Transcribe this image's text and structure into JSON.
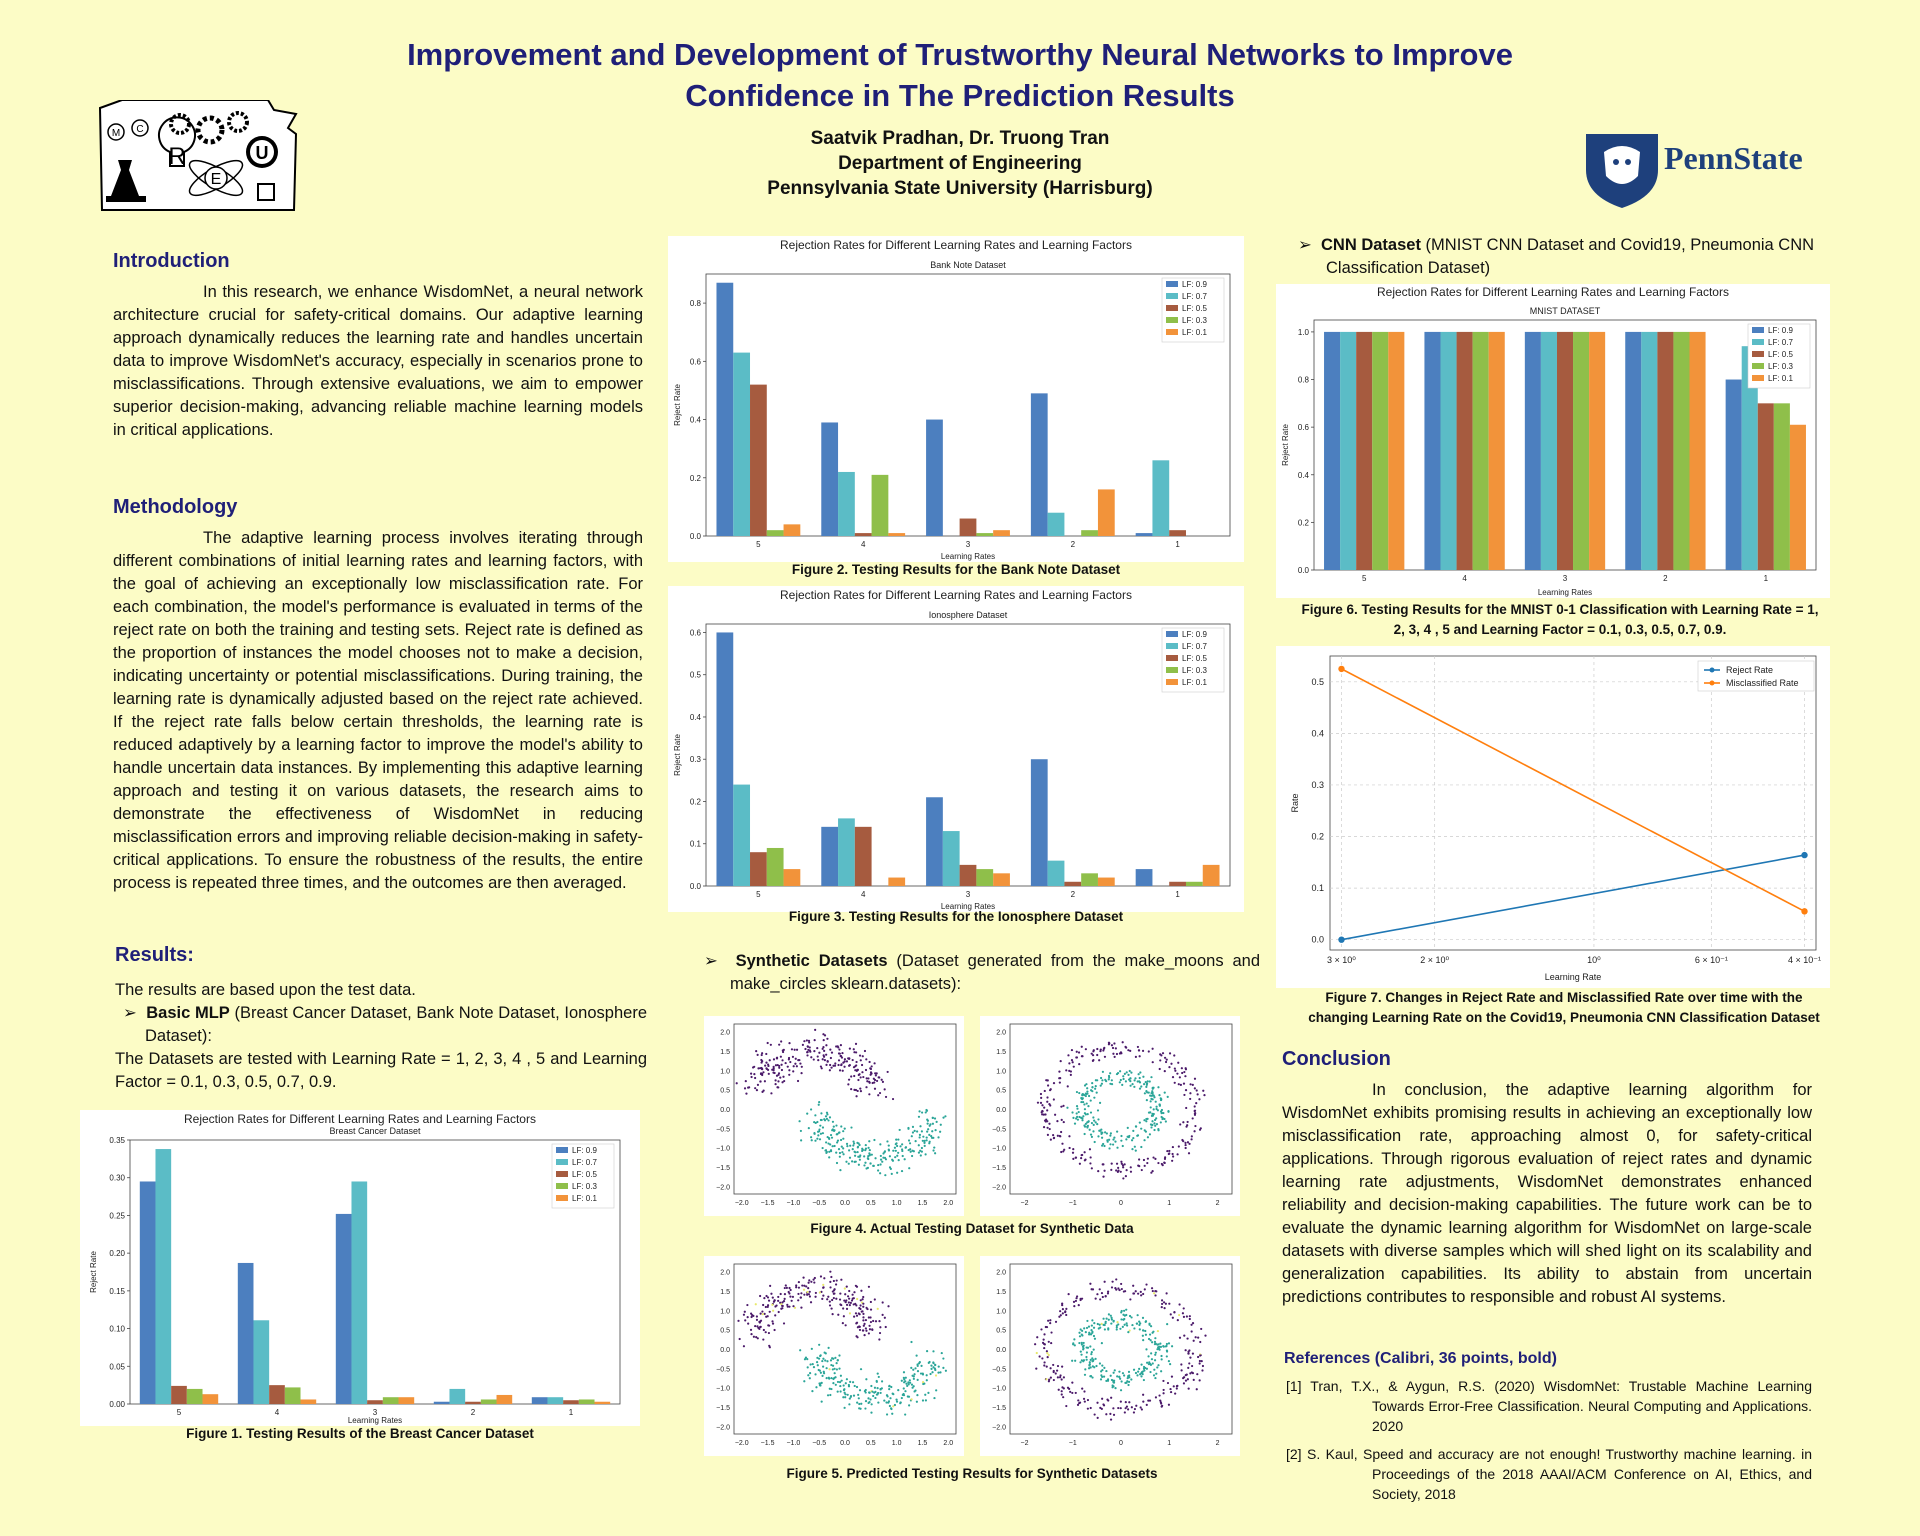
{
  "title_line1": "Improvement and Development of Trustworthy Neural Networks to Improve",
  "title_line2": "Confidence in The Prediction Results",
  "authors": "Saatvik Pradhan, Dr. Truong  Tran",
  "department": "Department of Engineering",
  "university": "Pennsylvania State University (Harrisburg)",
  "logo_letters": [
    "M",
    "C",
    "R",
    "E",
    "U"
  ],
  "pennstate_text": "PennState",
  "colors": {
    "title": "#1f1f78",
    "background": "#fcfcc6",
    "lf09": "#4c7fbf",
    "lf07": "#5bbcc6",
    "lf05": "#a65b3f",
    "lf03": "#8fbf4a",
    "lf01": "#f2933a",
    "moons_a": "#4b1a6a",
    "moons_b": "#2aa598",
    "reject": "#1f77b4",
    "misclassified": "#ff7f0e"
  },
  "intro": {
    "heading": "Introduction",
    "text": "In this research, we enhance WisdomNet, a neural network architecture crucial for safety-critical domains. Our adaptive learning approach dynamically reduces the learning rate and handles uncertain data to improve WisdomNet's accuracy, especially in scenarios prone to misclassifications. Through extensive evaluations, we aim to empower superior decision-making, advancing reliable machine learning models in critical applications."
  },
  "methodology": {
    "heading": "Methodology",
    "text": "The adaptive learning process involves iterating through different combinations of initial learning rates and learning factors, with the goal of achieving an exceptionally low misclassification rate. For each combination, the model's performance is evaluated in terms of the reject rate on both the training and testing sets. Reject rate is defined as the proportion of instances the model chooses not to make a decision, indicating uncertainty or potential misclassifications. During training, the learning rate is dynamically adjusted based on the reject rate achieved. If the reject rate falls below certain thresholds, the learning rate is reduced adaptively by a learning factor to improve the model's ability to handle uncertain data instances. By implementing this adaptive learning approach and testing it on various datasets, the research aims to demonstrate the effectiveness of WisdomNet in reducing misclassification errors and improving reliable decision-making in safety-critical applications. To ensure the robustness of the results, the entire process is repeated three times, and the outcomes are then averaged."
  },
  "results": {
    "heading": "Results:",
    "line1": "The results are based upon the test data.",
    "bullet_bold": "Basic MLP",
    "bullet_rest": " (Breast Cancer Dataset, Bank Note Dataset, Ionosphere Dataset):",
    "line2": "The Datasets are tested with Learning Rate = 1, 2, 3, 4 , 5 and Learning Factor = 0.1, 0.3, 0.5, 0.7, 0.9."
  },
  "synthetic": {
    "bold": "Synthetic Datasets",
    "rest": " (Dataset generated from the make_moons and make_circles sklearn.datasets):",
    "fig4_caption": "Figure 4. Actual Testing Dataset for Synthetic Data",
    "fig5_caption": "Figure 5. Predicted Testing Results for Synthetic Datasets",
    "moons_xticks": [
      "−2.0",
      "−1.5",
      "−1.0",
      "−0.5",
      "0.0",
      "0.5",
      "1.0",
      "1.5",
      "2.0"
    ],
    "circles_xticks": [
      "−2",
      "−1",
      "0",
      "1",
      "2"
    ],
    "yticks": [
      "2.0",
      "1.5",
      "1.0",
      "0.5",
      "0.0",
      "−0.5",
      "−1.0",
      "−1.5",
      "−2.0"
    ]
  },
  "cnn": {
    "bold": "CNN Dataset",
    "rest": "  (MNIST CNN Dataset and Covid19, Pneumonia CNN Classification Dataset)"
  },
  "conclusion": {
    "heading": "Conclusion",
    "text": "In conclusion, the adaptive learning algorithm for WisdomNet exhibits promising results in achieving an exceptionally low misclassification rate, approaching almost 0, for safety-critical applications. Through rigorous evaluation of reject rates and dynamic learning rate adjustments, WisdomNet demonstrates enhanced reliability and decision-making capabilities. The future work can be to evaluate the dynamic learning algorithm for WisdomNet on large-scale datasets with diverse samples which will shed light on its scalability and generalization capabilities. Its ability to abstain from uncertain predictions contributes to responsible and robust AI systems."
  },
  "references": {
    "heading": "References (Calibri, 36 points, bold)",
    "items": [
      "[1] Tran, T.X., & Aygun, R.S. (2020) WisdomNet: Trustable Machine Learning Towards Error-Free Classification. Neural Computing and Applications. 2020",
      "[2] S. Kaul, Speed and accuracy are not enough! Trustworthy machine learning.  in Proceedings of the 2018 AAAI/ACM Conference on AI, Ethics, and Society, 2018"
    ]
  },
  "chart_data": [
    {
      "id": "fig1",
      "type": "bar",
      "title": "Rejection Rates for Different Learning Rates and Learning Factors",
      "subtitle": "Breast Cancer Dataset",
      "xlabel": "Learning Rates",
      "ylabel": "Reject Rate",
      "caption": "Figure 1. Testing Results of the Breast Cancer Dataset",
      "categories": [
        "5",
        "4",
        "3",
        "2",
        "1"
      ],
      "ylim": [
        0,
        0.35
      ],
      "yticks": [
        "0.00",
        "0.05",
        "0.10",
        "0.15",
        "0.20",
        "0.25",
        "0.30",
        "0.35"
      ],
      "ytick_values": [
        0,
        0.05,
        0.1,
        0.15,
        0.2,
        0.25,
        0.3,
        0.35
      ],
      "legend": "top-right",
      "series": [
        {
          "name": "LF: 0.9",
          "values": [
            0.295,
            0.187,
            0.252,
            0.003,
            0.009
          ]
        },
        {
          "name": "LF: 0.7",
          "values": [
            0.338,
            0.111,
            0.295,
            0.02,
            0.009
          ]
        },
        {
          "name": "LF: 0.5",
          "values": [
            0.024,
            0.025,
            0.005,
            0.003,
            0.005
          ]
        },
        {
          "name": "LF: 0.3",
          "values": [
            0.02,
            0.022,
            0.009,
            0.006,
            0.006
          ]
        },
        {
          "name": "LF: 0.1",
          "values": [
            0.013,
            0.006,
            0.009,
            0.012,
            0.003
          ]
        }
      ]
    },
    {
      "id": "fig2",
      "type": "bar",
      "title": "Rejection Rates for Different Learning Rates and Learning Factors",
      "subtitle": "Bank Note Dataset",
      "xlabel": "Learning Rates",
      "ylabel": "Reject Rate",
      "caption": "Figure 2. Testing Results for the Bank Note Dataset",
      "categories": [
        "5",
        "4",
        "3",
        "2",
        "1"
      ],
      "ylim": [
        0,
        0.9
      ],
      "yticks": [
        "0.0",
        "0.2",
        "0.4",
        "0.6",
        "0.8"
      ],
      "ytick_values": [
        0,
        0.2,
        0.4,
        0.6,
        0.8
      ],
      "legend": "top-right",
      "series": [
        {
          "name": "LF: 0.9",
          "values": [
            0.87,
            0.39,
            0.4,
            0.49,
            0.01
          ]
        },
        {
          "name": "LF: 0.7",
          "values": [
            0.63,
            0.22,
            0.0,
            0.08,
            0.26
          ]
        },
        {
          "name": "LF: 0.5",
          "values": [
            0.52,
            0.01,
            0.06,
            0.0,
            0.02
          ]
        },
        {
          "name": "LF: 0.3",
          "values": [
            0.02,
            0.21,
            0.01,
            0.02,
            0.0
          ]
        },
        {
          "name": "LF: 0.1",
          "values": [
            0.04,
            0.01,
            0.02,
            0.16,
            0.0
          ]
        }
      ]
    },
    {
      "id": "fig3",
      "type": "bar",
      "title": "Rejection Rates for Different Learning Rates and Learning Factors",
      "subtitle": "Ionosphere Dataset",
      "xlabel": "Learning Rates",
      "ylabel": "Reject Rate",
      "caption": "Figure 3. Testing Results for the Ionosphere Dataset",
      "categories": [
        "5",
        "4",
        "3",
        "2",
        "1"
      ],
      "ylim": [
        0,
        0.62
      ],
      "yticks": [
        "0.0",
        "0.1",
        "0.2",
        "0.3",
        "0.4",
        "0.5",
        "0.6"
      ],
      "ytick_values": [
        0,
        0.1,
        0.2,
        0.3,
        0.4,
        0.5,
        0.6
      ],
      "legend": "top-right",
      "series": [
        {
          "name": "LF: 0.9",
          "values": [
            0.6,
            0.14,
            0.21,
            0.3,
            0.04
          ]
        },
        {
          "name": "LF: 0.7",
          "values": [
            0.24,
            0.16,
            0.13,
            0.06,
            0.0
          ]
        },
        {
          "name": "LF: 0.5",
          "values": [
            0.08,
            0.14,
            0.05,
            0.01,
            0.01
          ]
        },
        {
          "name": "LF: 0.3",
          "values": [
            0.09,
            0.0,
            0.04,
            0.03,
            0.01
          ]
        },
        {
          "name": "LF: 0.1",
          "values": [
            0.04,
            0.02,
            0.03,
            0.02,
            0.05
          ]
        }
      ]
    },
    {
      "id": "fig6",
      "type": "bar",
      "title": "Rejection Rates for Different Learning Rates and Learning Factors",
      "subtitle": "MNIST DATASET",
      "xlabel": "Learning Rates",
      "ylabel": "Reject Rate",
      "caption": "Figure 6. Testing Results for the MNIST 0-1 Classification with Learning Rate = 1, 2, 3, 4 , 5 and Learning Factor = 0.1, 0.3, 0.5, 0.7, 0.9.",
      "categories": [
        "5",
        "4",
        "3",
        "2",
        "1"
      ],
      "ylim": [
        0,
        1.05
      ],
      "yticks": [
        "0.0",
        "0.2",
        "0.4",
        "0.6",
        "0.8",
        "1.0"
      ],
      "ytick_values": [
        0,
        0.2,
        0.4,
        0.6,
        0.8,
        1.0
      ],
      "legend": "top-right",
      "series": [
        {
          "name": "LF: 0.9",
          "values": [
            1.0,
            1.0,
            1.0,
            1.0,
            0.8
          ]
        },
        {
          "name": "LF: 0.7",
          "values": [
            1.0,
            1.0,
            1.0,
            1.0,
            0.94
          ]
        },
        {
          "name": "LF: 0.5",
          "values": [
            1.0,
            1.0,
            1.0,
            1.0,
            0.7
          ]
        },
        {
          "name": "LF: 0.3",
          "values": [
            1.0,
            1.0,
            1.0,
            1.0,
            0.7
          ]
        },
        {
          "name": "LF: 0.1",
          "values": [
            1.0,
            1.0,
            1.0,
            1.0,
            0.61
          ]
        }
      ]
    },
    {
      "id": "fig7",
      "type": "line",
      "title": "",
      "xlabel": "Learning Rate",
      "ylabel": "Rate",
      "caption": "Figure 7. Changes in Reject Rate and Misclassified Rate over time with the changing Learning Rate on the Covid19, Pneumonia CNN Classification Dataset",
      "x": [
        3,
        0.4
      ],
      "xscale": "log-reversed",
      "xticks": [
        "3 × 10⁰",
        "2 × 10⁰",
        "10⁰",
        "6 × 10⁻¹",
        "4 × 10⁻¹"
      ],
      "xtick_values": [
        3,
        2,
        1,
        0.6,
        0.4
      ],
      "ylim": [
        -0.02,
        0.55
      ],
      "yticks": [
        "0.0",
        "0.1",
        "0.2",
        "0.3",
        "0.4",
        "0.5"
      ],
      "ytick_values": [
        0,
        0.1,
        0.2,
        0.3,
        0.4,
        0.5
      ],
      "grid": true,
      "legend": "top-right",
      "series": [
        {
          "name": "Reject Rate",
          "values": [
            0.0,
            0.164
          ]
        },
        {
          "name": "Misclassified Rate",
          "values": [
            0.525,
            0.055
          ]
        }
      ]
    },
    {
      "id": "fig4a",
      "type": "scatter",
      "caption_ref": "fig4",
      "dataset": "moons",
      "variant": "actual"
    },
    {
      "id": "fig4b",
      "type": "scatter",
      "caption_ref": "fig4",
      "dataset": "circles",
      "variant": "actual"
    },
    {
      "id": "fig5a",
      "type": "scatter",
      "caption_ref": "fig5",
      "dataset": "moons",
      "variant": "predicted"
    },
    {
      "id": "fig5b",
      "type": "scatter",
      "caption_ref": "fig5",
      "dataset": "circles",
      "variant": "predicted"
    }
  ]
}
